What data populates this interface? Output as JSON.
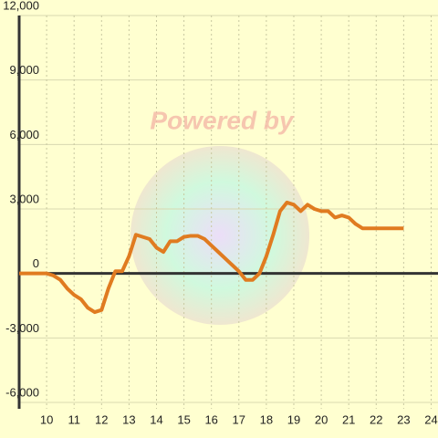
{
  "chart_data": {
    "type": "line",
    "watermark": "Powered by",
    "x": [
      9,
      10,
      10.25,
      10.5,
      10.75,
      11,
      11.25,
      11.5,
      11.75,
      12,
      12.25,
      12.5,
      12.75,
      13,
      13.25,
      13.5,
      13.75,
      14,
      14.25,
      14.5,
      14.75,
      15,
      15.25,
      15.5,
      15.75,
      16,
      16.25,
      16.5,
      16.75,
      17,
      17.25,
      17.5,
      17.75,
      18,
      18.25,
      18.5,
      18.75,
      19,
      19.25,
      19.5,
      19.75,
      20,
      20.25,
      20.5,
      20.75,
      21,
      21.25,
      21.5,
      21.75,
      22,
      22.25,
      22.5,
      22.75,
      23
    ],
    "series": [
      {
        "color": "#e07b20",
        "values": [
          0,
          0,
          -100,
          -300,
          -700,
          -1000,
          -1200,
          -1600,
          -1800,
          -1700,
          -700,
          100,
          100,
          800,
          1800,
          1700,
          1600,
          1200,
          1000,
          1500,
          1500,
          1700,
          1750,
          1750,
          1600,
          1300,
          1000,
          700,
          400,
          100,
          -300,
          -300,
          0,
          800,
          1800,
          2900,
          3300,
          3200,
          2900,
          3200,
          3000,
          2900,
          2900,
          2600,
          2700,
          2600,
          2300,
          2100,
          2100,
          2100,
          2100,
          2100,
          2100,
          2100
        ]
      }
    ],
    "xlim": [
      9,
      24.25
    ],
    "xticks": [
      10,
      11,
      12,
      13,
      14,
      15,
      16,
      17,
      18,
      19,
      20,
      21,
      22,
      23,
      24
    ],
    "ylim": [
      -6000,
      12000
    ],
    "yticks": [
      {
        "value": -6000,
        "label": "-6,000"
      },
      {
        "value": -3000,
        "label": "-3,000"
      },
      0,
      {
        "value": 3000,
        "label": "3,000"
      },
      {
        "value": 6000,
        "label": "6,000"
      },
      {
        "value": 9000,
        "label": "9,000"
      },
      {
        "value": 12000,
        "label": "12,000"
      }
    ],
    "grid": true
  }
}
